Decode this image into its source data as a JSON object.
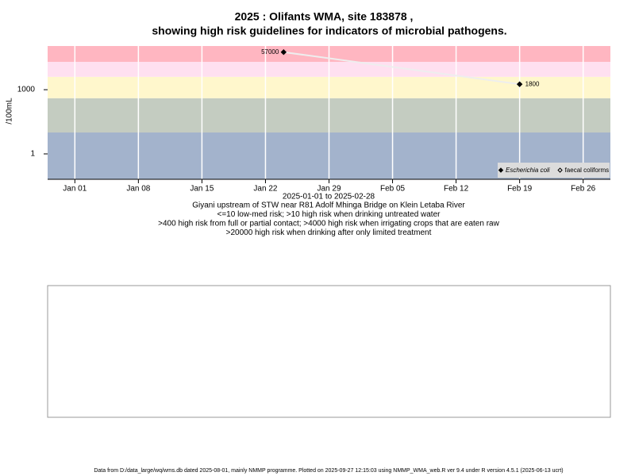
{
  "chart_data": {
    "type": "line",
    "title": "2025 : Olifants WMA, site 183878 ,",
    "title2": "showing high risk guidelines for indicators of microbial pathogens.",
    "y_label": "/100mL",
    "x_label": "2025-01-01 to 2025-02-28",
    "subtitle_lines": [
      "Giyani upstream of STW near R81 Adolf Mhinga Bridge on Klein Letaba River",
      "<=10 low-med risk; >10 high risk when drinking untreated water",
      ">400 high risk from full or partial contact; >4000 high risk when irrigating crops that are eaten raw",
      ">20000 high risk when drinking after only limited treatment"
    ],
    "footer": "Data from D:/data_large/wq/wms.db dated 2025-08-01, mainly NMMP programme. Plotted on 2025-09-27 12:15:03 using NMMP_WMA_web.R ver 9.4 under R version 4.5.1 (2025-06-13 ucrt)",
    "x": [
      "2025-01-24",
      "2025-02-19"
    ],
    "series": [
      {
        "name": "Escherichia coli",
        "color": "#000000",
        "marker": "filled-diamond",
        "values": [
          57000,
          1800
        ]
      },
      {
        "name": "faecal coliforms",
        "color": "#000000",
        "marker": "open-diamond",
        "values": [
          null,
          null
        ]
      }
    ],
    "line_color": "#eeeeee",
    "xlim": [
      "2024-12-29",
      "2025-03-01"
    ],
    "xticks": [
      {
        "value": "2025-01-01",
        "label": "Jan 01"
      },
      {
        "value": "2025-01-08",
        "label": "Jan 08"
      },
      {
        "value": "2025-01-15",
        "label": "Jan 15"
      },
      {
        "value": "2025-01-22",
        "label": "Jan 22"
      },
      {
        "value": "2025-01-29",
        "label": "Jan 29"
      },
      {
        "value": "2025-02-05",
        "label": "Feb 05"
      },
      {
        "value": "2025-02-12",
        "label": "Feb 12"
      },
      {
        "value": "2025-02-19",
        "label": "Feb 19"
      },
      {
        "value": "2025-02-26",
        "label": "Feb 26"
      }
    ],
    "ylim": [
      0.065,
      110000
    ],
    "yticks": [
      1,
      1000
    ],
    "y_log": true,
    "band_thresholds": [
      10,
      400,
      4000,
      20000
    ],
    "band_colors": [
      "#a3b3cc",
      "#c4ccc1",
      "#fff7cc",
      "#ffe0f0",
      "#ffb6c1"
    ],
    "grid": true,
    "legend_position": "bottom-right"
  }
}
